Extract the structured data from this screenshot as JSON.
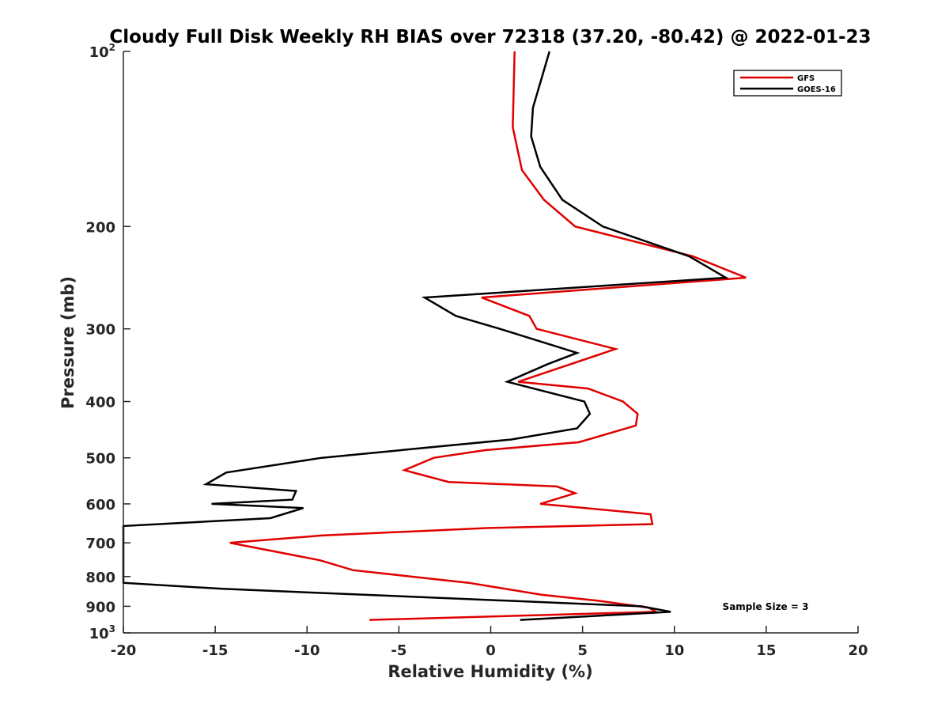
{
  "chart_data": {
    "type": "line",
    "title": "Cloudy Full Disk Weekly RH BIAS over 72318 (37.20, -80.42) @ 2022-01-23",
    "xlabel": "Relative Humidity (%)",
    "ylabel": "Pressure (mb)",
    "xlim": [
      -20,
      20
    ],
    "ylim": [
      100,
      1000
    ],
    "yscale": "log",
    "y_reversed": true,
    "grid": false,
    "legend_position": "top-right",
    "annotation": "Sample Size = 3",
    "x_ticks": [
      {
        "value": -20,
        "label": "-20"
      },
      {
        "value": -15,
        "label": "-15"
      },
      {
        "value": -10,
        "label": "-10"
      },
      {
        "value": -5,
        "label": "-5"
      },
      {
        "value": 0,
        "label": "0"
      },
      {
        "value": 5,
        "label": "5"
      },
      {
        "value": 10,
        "label": "10"
      },
      {
        "value": 15,
        "label": "15"
      },
      {
        "value": 20,
        "label": "20"
      }
    ],
    "y_ticks": [
      {
        "value": 100,
        "base": "10",
        "exp": "2"
      },
      {
        "value": 200,
        "base": "200",
        "exp": ""
      },
      {
        "value": 300,
        "base": "300",
        "exp": ""
      },
      {
        "value": 400,
        "base": "400",
        "exp": ""
      },
      {
        "value": 500,
        "base": "500",
        "exp": ""
      },
      {
        "value": 600,
        "base": "600",
        "exp": ""
      },
      {
        "value": 700,
        "base": "700",
        "exp": ""
      },
      {
        "value": 800,
        "base": "800",
        "exp": ""
      },
      {
        "value": 900,
        "base": "900",
        "exp": ""
      },
      {
        "value": 1000,
        "base": "10",
        "exp": "3"
      }
    ],
    "series": [
      {
        "name": "GFS",
        "color": "#e00000",
        "points": [
          {
            "x": 1.3,
            "y": 100
          },
          {
            "x": 1.2,
            "y": 135
          },
          {
            "x": 1.7,
            "y": 160
          },
          {
            "x": 2.9,
            "y": 180
          },
          {
            "x": 4.6,
            "y": 200
          },
          {
            "x": 11.0,
            "y": 225
          },
          {
            "x": 13.9,
            "y": 245
          },
          {
            "x": -0.5,
            "y": 265
          },
          {
            "x": 2.1,
            "y": 285
          },
          {
            "x": 2.5,
            "y": 300
          },
          {
            "x": 6.8,
            "y": 325
          },
          {
            "x": 1.5,
            "y": 370
          },
          {
            "x": 5.3,
            "y": 380
          },
          {
            "x": 7.2,
            "y": 400
          },
          {
            "x": 8.0,
            "y": 420
          },
          {
            "x": 7.9,
            "y": 440
          },
          {
            "x": 4.8,
            "y": 470
          },
          {
            "x": -0.3,
            "y": 485
          },
          {
            "x": -3.1,
            "y": 500
          },
          {
            "x": -4.7,
            "y": 525
          },
          {
            "x": -2.3,
            "y": 550
          },
          {
            "x": 3.6,
            "y": 560
          },
          {
            "x": 4.6,
            "y": 575
          },
          {
            "x": 2.7,
            "y": 600
          },
          {
            "x": 8.7,
            "y": 625
          },
          {
            "x": 8.8,
            "y": 650
          },
          {
            "x": -0.1,
            "y": 660
          },
          {
            "x": -9.2,
            "y": 680
          },
          {
            "x": -14.2,
            "y": 700
          },
          {
            "x": -12.2,
            "y": 720
          },
          {
            "x": -9.3,
            "y": 750
          },
          {
            "x": -7.5,
            "y": 780
          },
          {
            "x": -1.2,
            "y": 820
          },
          {
            "x": 2.8,
            "y": 860
          },
          {
            "x": 5.8,
            "y": 880
          },
          {
            "x": 8.6,
            "y": 905
          },
          {
            "x": 9.0,
            "y": 920
          },
          {
            "x": -6.6,
            "y": 950
          }
        ]
      },
      {
        "name": "GOES-16",
        "color": "#000000",
        "points": [
          {
            "x": 3.2,
            "y": 100
          },
          {
            "x": 2.3,
            "y": 125
          },
          {
            "x": 2.2,
            "y": 140
          },
          {
            "x": 2.7,
            "y": 158
          },
          {
            "x": 3.9,
            "y": 180
          },
          {
            "x": 6.1,
            "y": 200
          },
          {
            "x": 10.8,
            "y": 225
          },
          {
            "x": 12.8,
            "y": 245
          },
          {
            "x": -3.6,
            "y": 265
          },
          {
            "x": -1.9,
            "y": 285
          },
          {
            "x": 0.5,
            "y": 300
          },
          {
            "x": 4.7,
            "y": 330
          },
          {
            "x": 3.1,
            "y": 345
          },
          {
            "x": 0.9,
            "y": 370
          },
          {
            "x": 5.1,
            "y": 400
          },
          {
            "x": 5.4,
            "y": 420
          },
          {
            "x": 4.7,
            "y": 445
          },
          {
            "x": 1.1,
            "y": 465
          },
          {
            "x": -9.2,
            "y": 500
          },
          {
            "x": -14.4,
            "y": 530
          },
          {
            "x": -15.5,
            "y": 555
          },
          {
            "x": -10.6,
            "y": 570
          },
          {
            "x": -10.8,
            "y": 590
          },
          {
            "x": -15.2,
            "y": 600
          },
          {
            "x": -10.2,
            "y": 610
          },
          {
            "x": -12.0,
            "y": 635
          },
          {
            "x": -20.0,
            "y": 655
          },
          {
            "x": -20.0,
            "y": 820
          },
          {
            "x": -14.6,
            "y": 840
          },
          {
            "x": 8.2,
            "y": 900
          },
          {
            "x": 9.8,
            "y": 920
          },
          {
            "x": 1.6,
            "y": 950
          }
        ]
      }
    ]
  }
}
